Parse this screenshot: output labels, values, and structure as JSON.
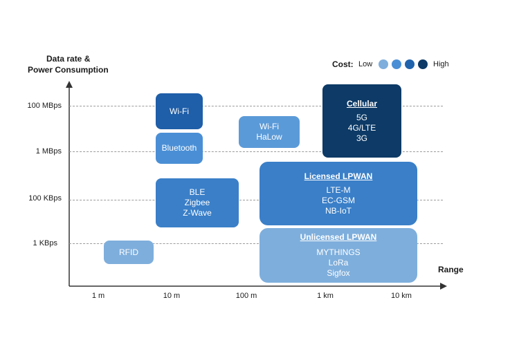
{
  "axes": {
    "y_title_line1": "Data rate &",
    "y_title_line2": "Power Consumption",
    "x_title": "Range",
    "y_ticks": [
      "100 MBps",
      "1 MBps",
      "100 KBps",
      "1 KBps"
    ],
    "x_ticks": [
      "1 m",
      "10 m",
      "100 m",
      "1 km",
      "10 km"
    ]
  },
  "legend": {
    "title": "Cost:",
    "low_label": "Low",
    "high_label": "High",
    "colors": [
      "#7eaedc",
      "#4a8fd6",
      "#1f63ad",
      "#0d3a66"
    ]
  },
  "boxes": {
    "wifi": {
      "label": "Wi-Fi",
      "color": "#1f5ea8"
    },
    "bluetooth": {
      "label": "Bluetooth",
      "color": "#4a8fd6"
    },
    "wifi_halow": {
      "line1": "Wi-Fi",
      "line2": "HaLow",
      "color": "#5b9ad8"
    },
    "cellular": {
      "header": "Cellular",
      "items": [
        "5G",
        "4G/LTE",
        "3G"
      ],
      "color": "#0d3a66"
    },
    "ble_group": {
      "items": [
        "BLE",
        "Zigbee",
        "Z-Wave"
      ],
      "color": "#3a7fc8"
    },
    "licensed_lpwan": {
      "header": "Licensed LPWAN",
      "items": [
        "LTE-M",
        "EC-GSM",
        "NB-IoT"
      ],
      "color": "#3a7fc8"
    },
    "rfid": {
      "label": "RFID",
      "color": "#7eaedc"
    },
    "unlicensed_lpwan": {
      "header": "Unlicensed LPWAN",
      "items": [
        "MYTHINGS",
        "LoRa",
        "Sigfox"
      ],
      "color": "#7eaedc"
    }
  }
}
